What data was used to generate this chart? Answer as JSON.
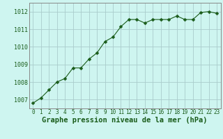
{
  "x": [
    0,
    1,
    2,
    3,
    4,
    5,
    6,
    7,
    8,
    9,
    10,
    11,
    12,
    13,
    14,
    15,
    16,
    17,
    18,
    19,
    20,
    21,
    22,
    23
  ],
  "y": [
    1006.8,
    1007.1,
    1007.55,
    1008.0,
    1008.2,
    1008.8,
    1008.8,
    1009.3,
    1009.65,
    1010.3,
    1010.55,
    1011.15,
    1011.55,
    1011.55,
    1011.35,
    1011.55,
    1011.55,
    1011.55,
    1011.75,
    1011.55,
    1011.55,
    1011.95,
    1012.0,
    1011.9
  ],
  "line_color": "#1a5c1a",
  "marker": "D",
  "marker_size": 2.5,
  "bg_color": "#cef5f0",
  "grid_color": "#aacccc",
  "xlabel": "Graphe pression niveau de la mer (hPa)",
  "xlabel_fontsize": 7.5,
  "xlabel_color": "#1a5c1a",
  "ylim": [
    1006.5,
    1012.5
  ],
  "yticks": [
    1007,
    1008,
    1009,
    1010,
    1011,
    1012
  ],
  "xtick_fontsize": 5.5,
  "ytick_fontsize": 6,
  "tick_color": "#1a5c1a",
  "spine_color": "#888888",
  "linewidth": 0.8
}
